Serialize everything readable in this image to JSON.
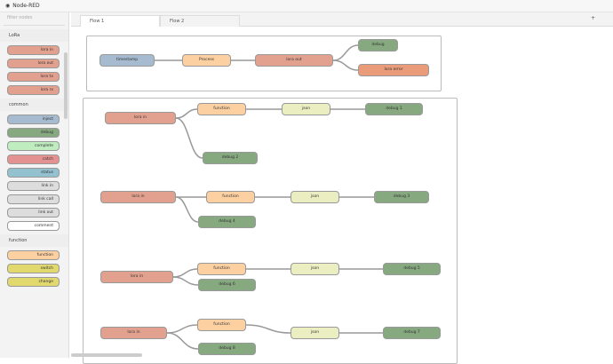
{
  "app": {
    "title": "Node-RED"
  },
  "palette": {
    "search_placeholder": "filter nodes",
    "categories": [
      {
        "label": "LoRa",
        "items": [
          {
            "label": "lora in",
            "color": "#e2a08f"
          },
          {
            "label": "lora out",
            "color": "#e2a08f"
          },
          {
            "label": "lora tx",
            "color": "#e2a08f"
          },
          {
            "label": "lora rx",
            "color": "#e2a08f"
          }
        ]
      },
      {
        "label": "common",
        "items": [
          {
            "label": "inject",
            "color": "#a6bbcf"
          },
          {
            "label": "debug",
            "color": "#87a980"
          },
          {
            "label": "complete",
            "color": "#c0edc0"
          },
          {
            "label": "catch",
            "color": "#e49191"
          },
          {
            "label": "status",
            "color": "#94c1d0"
          },
          {
            "label": "link in",
            "color": "#ddd"
          },
          {
            "label": "link call",
            "color": "#ddd"
          },
          {
            "label": "link out",
            "color": "#ddd"
          },
          {
            "label": "comment",
            "color": "#fff"
          }
        ]
      },
      {
        "label": "function",
        "items": [
          {
            "label": "function",
            "color": "#fdd0a2"
          },
          {
            "label": "switch",
            "color": "#e2d96e"
          },
          {
            "label": "change",
            "color": "#e2d96e"
          }
        ]
      }
    ]
  },
  "tabs": [
    {
      "label": "Flow 1",
      "active": true
    },
    {
      "label": "Flow 2",
      "active": false
    }
  ],
  "add_tab_icon": "plus-icon",
  "flow": {
    "nodes": [
      {
        "label": "timestamp",
        "color": "#a6bbcf"
      },
      {
        "label": "Process",
        "color": "#fdd0a2"
      },
      {
        "label": "lora out",
        "color": "#e2a08f"
      },
      {
        "label": "debug",
        "color": "#87a980"
      },
      {
        "label": "lora error",
        "color": "#e99b7a"
      },
      {
        "label": "lora in",
        "color": "#e2a08f"
      },
      {
        "label": "function",
        "color": "#fdd0a2"
      },
      {
        "label": "json",
        "color": "#ebeec0"
      },
      {
        "label": "debug 1",
        "color": "#87a980"
      },
      {
        "label": "debug 2",
        "color": "#87a980"
      },
      {
        "label": "lora in",
        "color": "#e2a08f"
      },
      {
        "label": "function",
        "color": "#fdd0a2"
      },
      {
        "label": "json",
        "color": "#ebeec0"
      },
      {
        "label": "debug 3",
        "color": "#87a980"
      },
      {
        "label": "debug 4",
        "color": "#87a980"
      },
      {
        "label": "lora in",
        "color": "#e2a08f"
      },
      {
        "label": "function",
        "color": "#fdd0a2"
      },
      {
        "label": "json",
        "color": "#ebeec0"
      },
      {
        "label": "debug 5",
        "color": "#87a980"
      },
      {
        "label": "debug 6",
        "color": "#87a980"
      },
      {
        "label": "lora in",
        "color": "#e2a08f"
      },
      {
        "label": "function",
        "color": "#fdd0a2"
      },
      {
        "label": "json",
        "color": "#ebeec0"
      },
      {
        "label": "debug 7",
        "color": "#87a980"
      },
      {
        "label": "debug 8",
        "color": "#87a980"
      }
    ]
  }
}
